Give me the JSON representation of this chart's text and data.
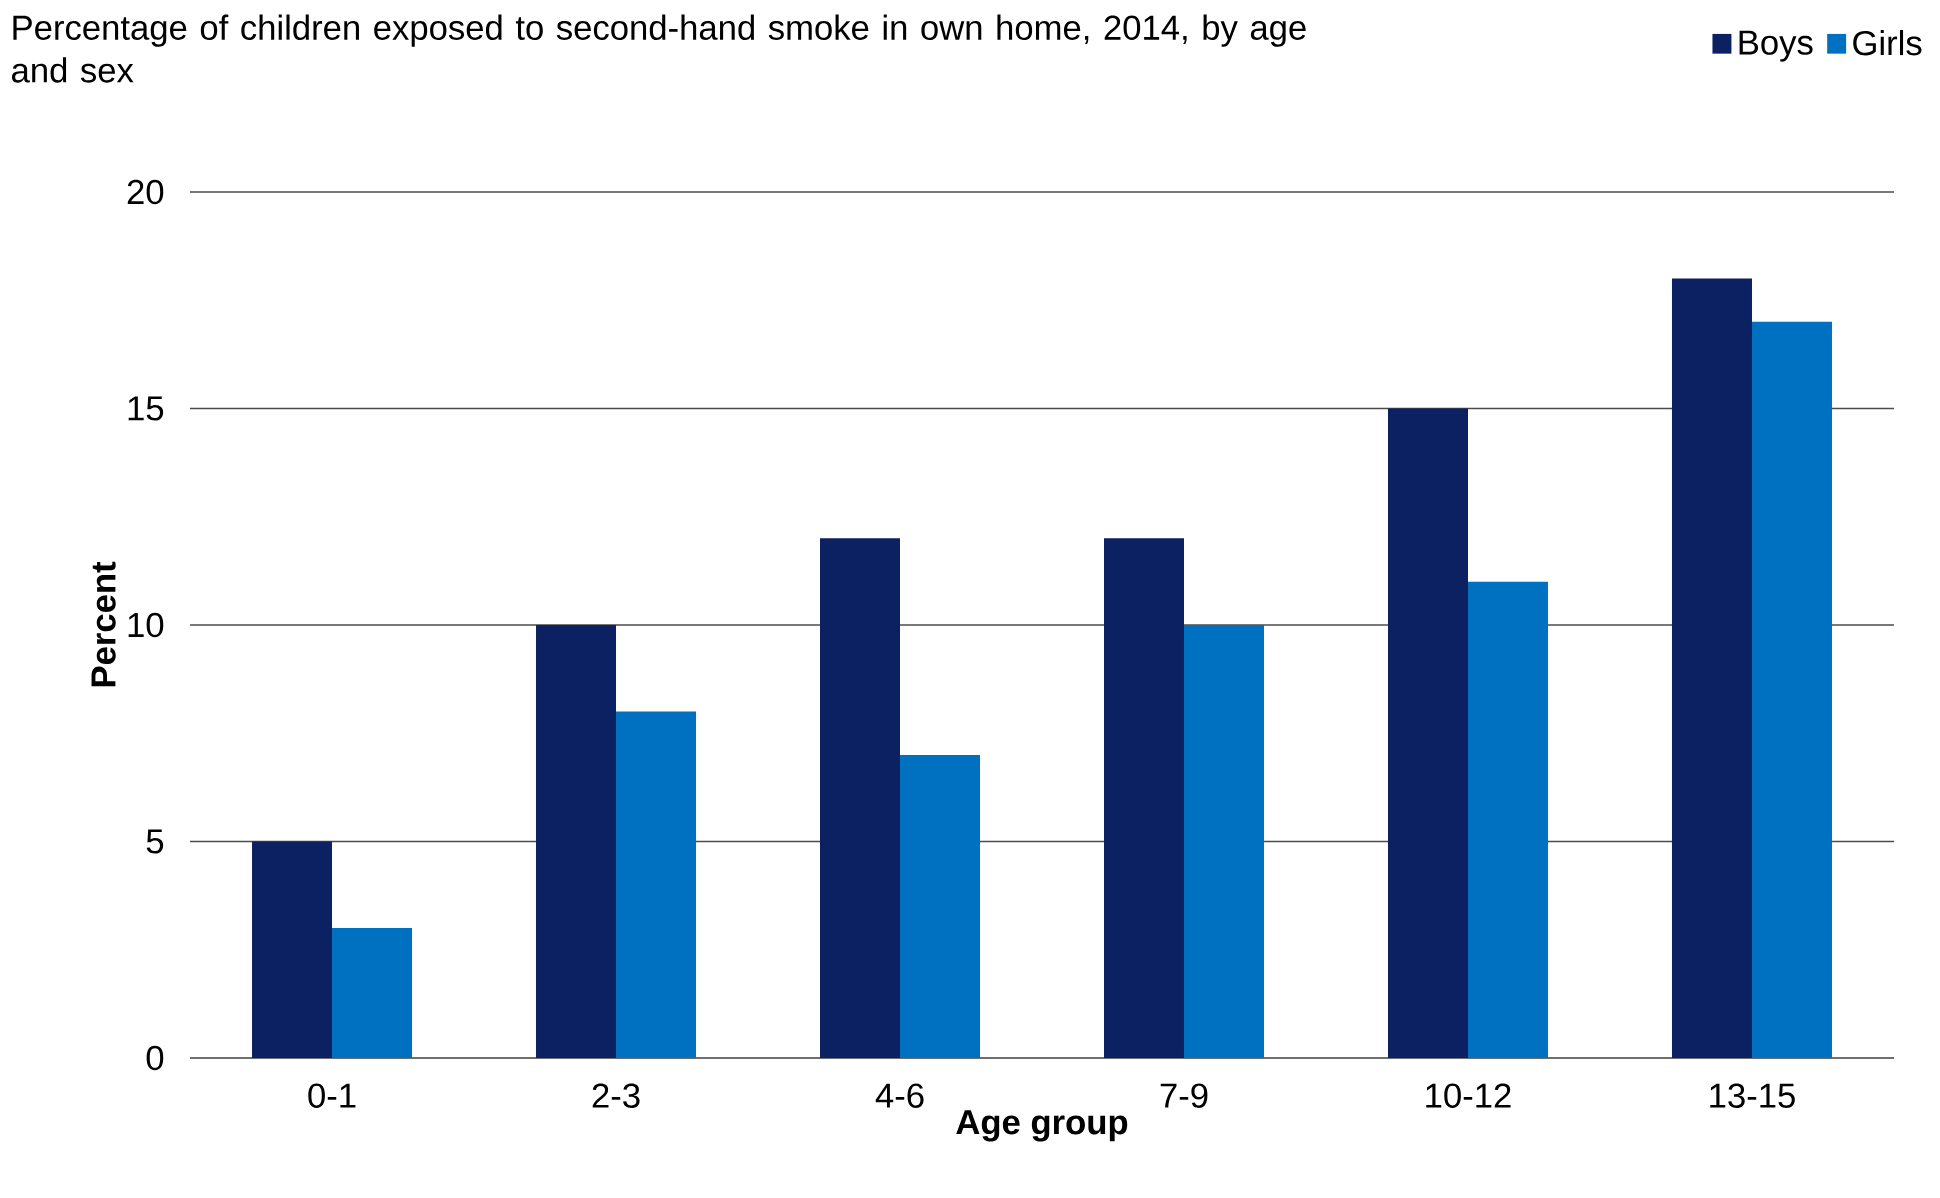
{
  "chart_data": {
    "type": "bar",
    "title": "Percentage of children exposed to second-hand smoke in own home, 2014, by age and sex",
    "xlabel": "Age group",
    "ylabel": "Percent",
    "categories": [
      "0-1",
      "2-3",
      "4-6",
      "7-9",
      "10-12",
      "13-15"
    ],
    "series": [
      {
        "name": "Boys",
        "color": "#0b2161",
        "values": [
          5,
          10,
          12,
          12,
          15,
          18
        ]
      },
      {
        "name": "Girls",
        "color": "#0070c0",
        "values": [
          3,
          8,
          7,
          10,
          11,
          17
        ]
      }
    ],
    "ylim": [
      0,
      20
    ],
    "yticks": [
      0,
      5,
      10,
      15,
      20
    ],
    "grid": "y",
    "legend": "top right"
  }
}
